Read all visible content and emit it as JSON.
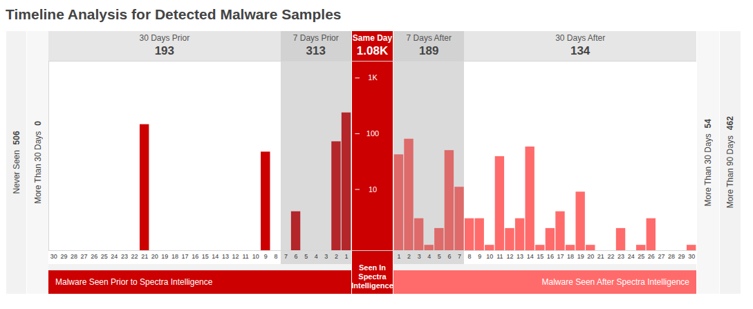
{
  "chart_data": {
    "type": "bar",
    "title": "Timeline Analysis for Detected Malware Samples",
    "log": "y",
    "ylim": [
      0.8,
      2000
    ],
    "yticks": [
      10,
      100,
      {
        "value": 1000,
        "label": "1K"
      }
    ],
    "periods": [
      {
        "name": "30 Days Prior",
        "total": 193,
        "color": "#cc0000",
        "days": [
          30,
          29,
          28,
          27,
          26,
          25,
          24,
          23,
          22,
          21,
          20,
          19,
          18,
          17,
          16,
          15,
          14,
          13,
          12,
          11,
          10,
          9,
          8
        ],
        "values": [
          0,
          0,
          0,
          0,
          0,
          0,
          0,
          0,
          0,
          146,
          0,
          0,
          0,
          0,
          0,
          0,
          0,
          0,
          0,
          0,
          0,
          47,
          0
        ]
      },
      {
        "name": "7 Days Prior",
        "total": 313,
        "color": "#b3262a",
        "days": [
          7,
          6,
          5,
          4,
          3,
          2,
          1
        ],
        "values": [
          0,
          4,
          0,
          0,
          0,
          72,
          237
        ]
      },
      {
        "name": "Same Day",
        "total": 1080,
        "total_label": "1.08K",
        "color": "#cc0000",
        "days": [
          null
        ],
        "values": [
          null
        ]
      },
      {
        "name": "7 Days After",
        "total": 189,
        "color": "#de6a6a",
        "days": [
          1,
          2,
          3,
          4,
          5,
          6,
          7
        ],
        "values": [
          42,
          80,
          3,
          1,
          2,
          50,
          11
        ]
      },
      {
        "name": "30 Days After",
        "total": 134,
        "color": "#ff6b6b",
        "days": [
          8,
          9,
          10,
          11,
          12,
          13,
          14,
          15,
          16,
          17,
          18,
          19,
          20,
          21,
          22,
          23,
          24,
          25,
          26,
          27,
          28,
          29,
          30
        ],
        "values": [
          3,
          3,
          1,
          39,
          2,
          3,
          58,
          1,
          2,
          4,
          1,
          9,
          1,
          0,
          0,
          2,
          0,
          1,
          3,
          0,
          0,
          0,
          1
        ]
      }
    ],
    "side_left": [
      {
        "label": "Never Seen",
        "value": 506
      },
      {
        "label": "More Than 30 Days",
        "value": 0
      }
    ],
    "side_right": [
      {
        "label": "More Than 30 Days",
        "value": 54
      },
      {
        "label": "More Than 90 Days",
        "value": 462
      }
    ],
    "footer": [
      {
        "text": "Malware Seen Prior to Spectra Intelligence",
        "color": "#cc0000"
      },
      {
        "text": "Seen In Spectra Intelligence",
        "color": "#cc0000"
      },
      {
        "text": "Malware Seen After Spectra Intelligence",
        "color": "#ff6b6b"
      }
    ]
  }
}
